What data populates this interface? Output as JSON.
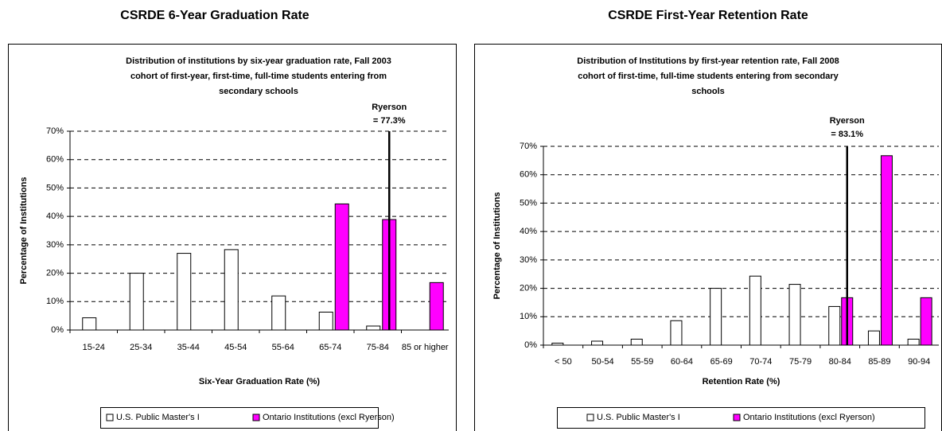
{
  "headings": [
    "CSRDE 6-Year Graduation Rate",
    "CSRDE First-Year Retention Rate"
  ],
  "chart_data": [
    {
      "type": "bar",
      "title": [
        "Distribution of institutions by six-year graduation rate, Fall 2003",
        "cohort of first-year, first-time, full-time students entering from",
        "secondary schools"
      ],
      "x_label": "Six-Year Graduation Rate (%)",
      "y_label": "Percentage of Institutions",
      "categories": [
        "15-24",
        "25-34",
        "35-44",
        "45-54",
        "55-64",
        "65-74",
        "75-84",
        "85 or higher"
      ],
      "series": [
        {
          "name": "U.S. Public Master's I",
          "color": "#ffffff",
          "values": [
            4.3,
            20,
            27,
            28.3,
            12,
            6.3,
            1.4,
            0
          ]
        },
        {
          "name": "Ontario Institutions (excl Ryerson)",
          "color": "#ff00ff",
          "values": [
            0,
            0,
            0,
            0,
            0,
            44.4,
            38.9,
            16.7
          ]
        }
      ],
      "annotation": {
        "label": "Ryerson",
        "value_label": "= 77.3%",
        "value": 77.3
      },
      "ylim": [
        0,
        70
      ],
      "yticks": [
        {
          "value": 0,
          "label": "0%"
        },
        {
          "value": 10,
          "label": "10%"
        },
        {
          "value": 20,
          "label": "20%"
        },
        {
          "value": 30,
          "label": "30%"
        },
        {
          "value": 40,
          "label": "40%"
        },
        {
          "value": 50,
          "label": "50%"
        },
        {
          "value": 60,
          "label": "60%"
        },
        {
          "value": 70,
          "label": "70%"
        }
      ],
      "grid": true,
      "legend": "bottom"
    },
    {
      "type": "bar",
      "title": [
        "Distribution of Institutions by first-year retention rate, Fall 2008",
        "cohort of first-time, full-time students entering from secondary",
        "schools"
      ],
      "x_label": "Retention Rate (%)",
      "y_label": "Percentage of Institutions",
      "categories": [
        "< 50",
        "50-54",
        "55-59",
        "60-64",
        "65-69",
        "70-74",
        "75-79",
        "80-84",
        "85-89",
        "90-94"
      ],
      "series": [
        {
          "name": "U.S. Public Master's I",
          "color": "#ffffff",
          "values": [
            0.7,
            1.4,
            2.1,
            8.6,
            20,
            24.3,
            21.4,
            13.6,
            5,
            2.1
          ]
        },
        {
          "name": "Ontario Institutions (excl Ryerson)",
          "color": "#ff00ff",
          "values": [
            0,
            0,
            0,
            0,
            0,
            0,
            0,
            16.7,
            66.7,
            16.7
          ]
        }
      ],
      "annotation": {
        "label": "Ryerson",
        "value_label": "= 83.1%",
        "value": 83.1
      },
      "ylim": [
        0,
        70
      ],
      "yticks": [
        {
          "value": 0,
          "label": "0%"
        },
        {
          "value": 10,
          "label": "10%"
        },
        {
          "value": 20,
          "label": "20%"
        },
        {
          "value": 30,
          "label": "30%"
        },
        {
          "value": 40,
          "label": "40%"
        },
        {
          "value": 50,
          "label": "50%"
        },
        {
          "value": 60,
          "label": "60%"
        },
        {
          "value": 70,
          "label": "70%"
        }
      ],
      "grid": true,
      "legend": "bottom"
    }
  ]
}
